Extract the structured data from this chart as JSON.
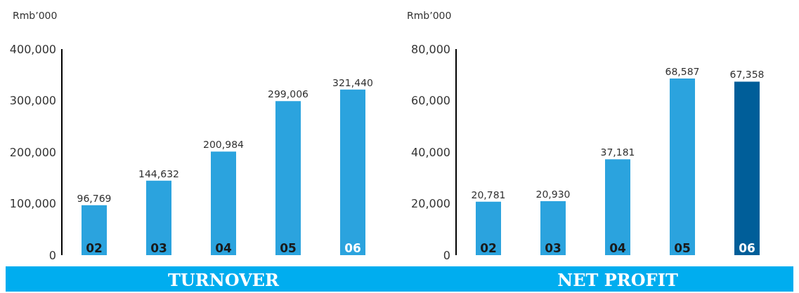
{
  "chart_data": [
    {
      "type": "bar",
      "title": "TURNOVER",
      "ylabel": "Rmb’000",
      "categories": [
        "02",
        "03",
        "04",
        "05",
        "06"
      ],
      "values": [
        96769,
        144632,
        200984,
        299006,
        321440
      ],
      "value_labels": [
        "96,769",
        "144,632",
        "200,984",
        "299,006",
        "321,440"
      ],
      "colors": [
        "#2ba3de",
        "#2ba3de",
        "#2ba3de",
        "#2ba3de",
        "#2ba3de"
      ],
      "ylim": [
        0,
        400000
      ],
      "yticks": [
        0,
        {
          "value": 100000,
          "label": "100,000"
        },
        {
          "value": 200000,
          "label": "200,000"
        },
        {
          "value": 300000,
          "label": "300,000"
        },
        {
          "value": 400000,
          "label": "400,000"
        }
      ]
    },
    {
      "type": "bar",
      "title": "NET PROFIT",
      "ylabel": "Rmb’000",
      "categories": [
        "02",
        "03",
        "04",
        "05",
        "06"
      ],
      "values": [
        20781,
        20930,
        37181,
        68587,
        67358
      ],
      "value_labels": [
        "20,781",
        "20,930",
        "37,181",
        "68,587",
        "67,358"
      ],
      "colors": [
        "#2ba3de",
        "#2ba3de",
        "#2ba3de",
        "#2ba3de",
        "#005e99"
      ],
      "ylim": [
        0,
        80000
      ],
      "yticks": [
        0,
        {
          "value": 20000,
          "label": "20,000"
        },
        {
          "value": 40000,
          "label": "40,000"
        },
        {
          "value": 60000,
          "label": "60,000"
        },
        {
          "value": 80000,
          "label": "80,000"
        }
      ]
    }
  ]
}
